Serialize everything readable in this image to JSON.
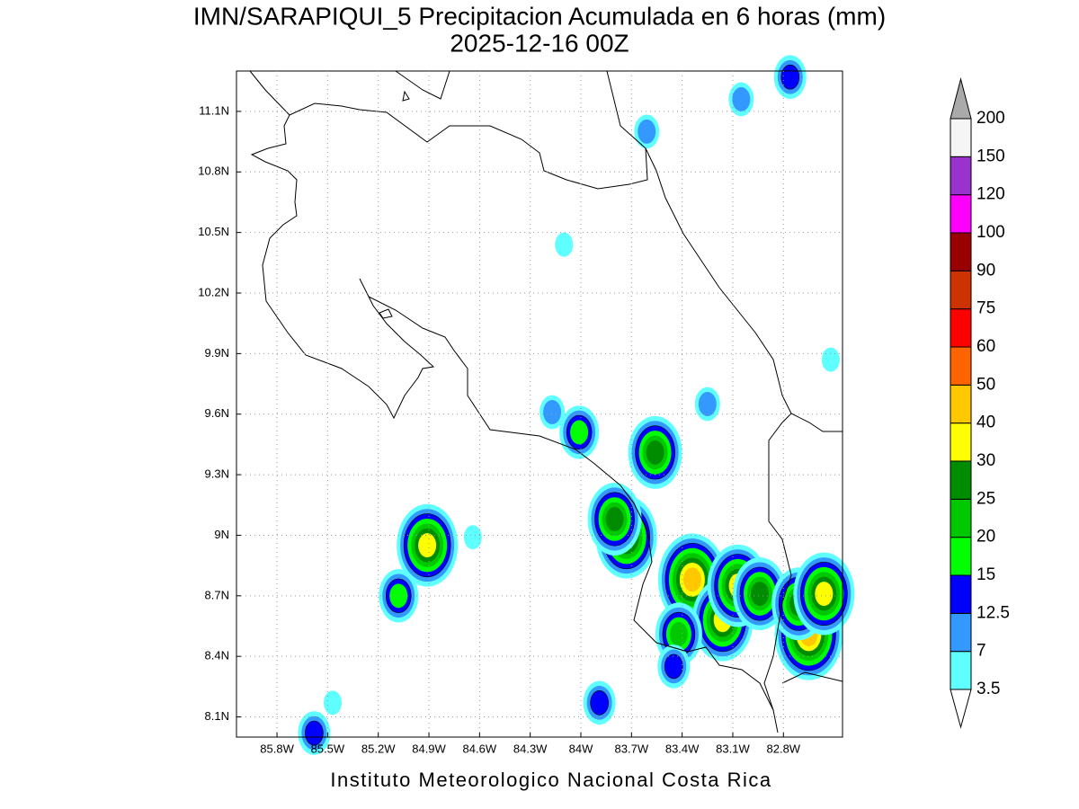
{
  "chart_data": {
    "type": "map",
    "title": "IMN/SARAPIQUI_5 Precipitacion Acumulada en 6 horas (mm)",
    "subtitle": "2025-12-16 00Z",
    "credit": "Instituto Meteorologico Nacional Costa Rica",
    "xlim": [
      -86.04,
      -82.45
    ],
    "ylim": [
      8.0,
      11.3
    ],
    "xticks": [
      {
        "value": -85.8,
        "label": "85.8W"
      },
      {
        "value": -85.5,
        "label": "85.5W"
      },
      {
        "value": -85.2,
        "label": "85.2W"
      },
      {
        "value": -84.9,
        "label": "84.9W"
      },
      {
        "value": -84.6,
        "label": "84.6W"
      },
      {
        "value": -84.3,
        "label": "84.3W"
      },
      {
        "value": -84.0,
        "label": "84W"
      },
      {
        "value": -83.7,
        "label": "83.7W"
      },
      {
        "value": -83.4,
        "label": "83.4W"
      },
      {
        "value": -83.1,
        "label": "83.1W"
      },
      {
        "value": -82.8,
        "label": "82.8W"
      }
    ],
    "yticks": [
      {
        "value": 8.1,
        "label": "8.1N"
      },
      {
        "value": 8.4,
        "label": "8.4N"
      },
      {
        "value": 8.7,
        "label": "8.7N"
      },
      {
        "value": 9.0,
        "label": "9N"
      },
      {
        "value": 9.3,
        "label": "9.3N"
      },
      {
        "value": 9.6,
        "label": "9.6N"
      },
      {
        "value": 9.9,
        "label": "9.9N"
      },
      {
        "value": 10.2,
        "label": "10.2N"
      },
      {
        "value": 10.5,
        "label": "10.5N"
      },
      {
        "value": 10.8,
        "label": "10.8N"
      },
      {
        "value": 11.1,
        "label": "11.1N"
      }
    ],
    "grid": true,
    "colorbar": {
      "levels": [
        3.5,
        7,
        12.5,
        15,
        20,
        25,
        30,
        40,
        50,
        60,
        75,
        90,
        100,
        120,
        150,
        200
      ],
      "colors": [
        "#60ffff",
        "#3399ff",
        "#0000ff",
        "#00ff00",
        "#00c800",
        "#008c00",
        "#ffff00",
        "#ffc800",
        "#ff6400",
        "#ff0000",
        "#cc3300",
        "#990000",
        "#ff00ff",
        "#9933cc",
        "#f5f5f5"
      ],
      "under_color": "#ffffff",
      "over_color": "#aaaaaa"
    },
    "cells": [
      {
        "lon": -84.91,
        "lat": 8.95,
        "mm": 30
      },
      {
        "lon": -85.08,
        "lat": 8.7,
        "mm": 15
      },
      {
        "lon": -84.01,
        "lat": 9.51,
        "mm": 15
      },
      {
        "lon": -83.56,
        "lat": 9.41,
        "mm": 25
      },
      {
        "lon": -83.73,
        "lat": 8.99,
        "mm": 35
      },
      {
        "lon": -83.8,
        "lat": 9.08,
        "mm": 25
      },
      {
        "lon": -83.34,
        "lat": 8.78,
        "mm": 45
      },
      {
        "lon": -83.16,
        "lat": 8.58,
        "mm": 35
      },
      {
        "lon": -83.07,
        "lat": 8.75,
        "mm": 30
      },
      {
        "lon": -82.94,
        "lat": 8.71,
        "mm": 25
      },
      {
        "lon": -82.65,
        "lat": 8.51,
        "mm": 45
      },
      {
        "lon": -82.71,
        "lat": 8.66,
        "mm": 25
      },
      {
        "lon": -82.56,
        "lat": 8.71,
        "mm": 30
      },
      {
        "lon": -83.42,
        "lat": 8.51,
        "mm": 20
      },
      {
        "lon": -83.89,
        "lat": 8.17,
        "mm": 13
      },
      {
        "lon": -83.45,
        "lat": 8.35,
        "mm": 13
      },
      {
        "lon": -84.17,
        "lat": 9.61,
        "mm": 8
      },
      {
        "lon": -83.25,
        "lat": 9.65,
        "mm": 8
      },
      {
        "lon": -82.76,
        "lat": 11.27,
        "mm": 13
      },
      {
        "lon": -83.05,
        "lat": 11.16,
        "mm": 8
      },
      {
        "lon": -83.61,
        "lat": 11.0,
        "mm": 8
      },
      {
        "lon": -85.58,
        "lat": 8.02,
        "mm": 13
      },
      {
        "lon": -85.47,
        "lat": 8.17,
        "mm": 5
      },
      {
        "lon": -84.64,
        "lat": 8.99,
        "mm": 5
      },
      {
        "lon": -82.52,
        "lat": 9.87,
        "mm": 5
      },
      {
        "lon": -84.1,
        "lat": 10.44,
        "mm": 5
      }
    ]
  }
}
